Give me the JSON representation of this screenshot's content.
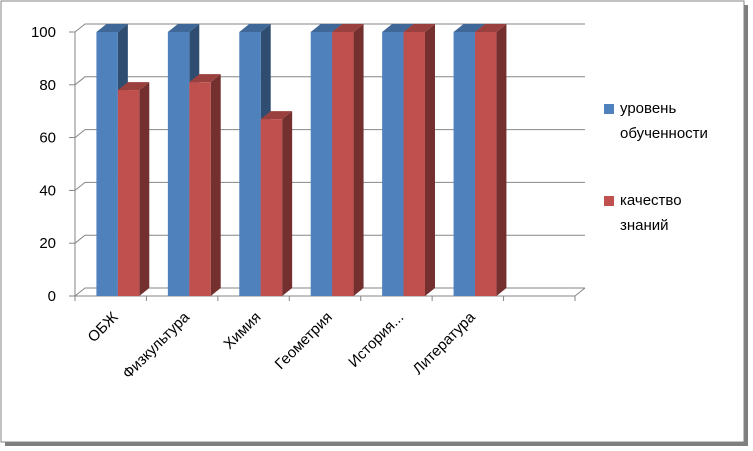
{
  "chart_data": {
    "type": "bar3d",
    "categories": [
      "ОБЖ",
      "Физкультура",
      "Химия",
      "Геометрия",
      "История...",
      "Литература",
      null
    ],
    "series": [
      {
        "name": "уровень обученности",
        "color": "#4f81bd",
        "values": [
          100,
          100,
          100,
          100,
          100,
          100,
          null
        ]
      },
      {
        "name": "качество знаний",
        "color": "#c0504d",
        "values": [
          78,
          81,
          67,
          100,
          100,
          100,
          null
        ]
      }
    ],
    "ylim": [
      0,
      100
    ],
    "yticks": [
      0,
      20,
      40,
      60,
      80,
      100
    ],
    "grid": true,
    "legend": "right"
  }
}
